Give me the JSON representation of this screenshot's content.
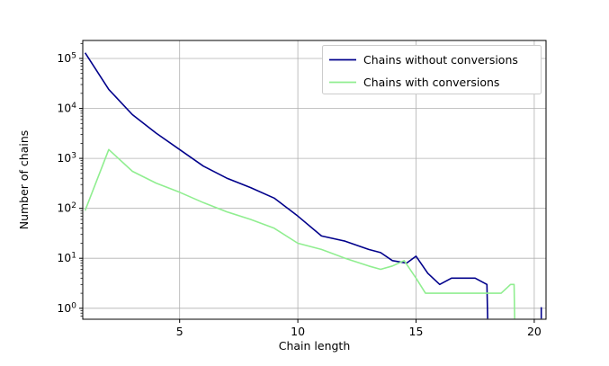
{
  "chart_data": {
    "type": "line",
    "title": "",
    "xlabel": "Chain length",
    "ylabel": "Number of chains",
    "x_ticks": [
      5,
      10,
      15,
      20
    ],
    "y_ticks_exp": [
      0,
      1,
      2,
      3,
      4,
      5
    ],
    "xlim": [
      0.9,
      20.5
    ],
    "ylim_log": [
      -0.22,
      5.36
    ],
    "yscale": "log",
    "grid": true,
    "grid_color": "#b0b0b0",
    "legend_position": "upper right",
    "series": [
      {
        "name": "Chains without conversions",
        "color": "#00008b",
        "points": [
          [
            1,
            130000
          ],
          [
            2,
            24000
          ],
          [
            3,
            7500
          ],
          [
            4,
            3200
          ],
          [
            5,
            1500
          ],
          [
            6,
            700
          ],
          [
            7,
            400
          ],
          [
            8,
            260
          ],
          [
            9,
            160
          ],
          [
            10,
            70
          ],
          [
            11,
            28
          ],
          [
            12,
            22
          ],
          [
            13,
            15
          ],
          [
            13.5,
            13
          ],
          [
            14,
            9
          ],
          [
            14.6,
            8
          ],
          [
            15,
            11
          ],
          [
            15.5,
            5
          ],
          [
            16,
            3
          ],
          [
            16.5,
            4
          ],
          [
            17.5,
            4
          ],
          [
            18,
            3
          ],
          [
            18.03,
            0.62
          ]
        ],
        "extra_segments": [
          [
            [
              20.3,
              0.62
            ],
            [
              20.3,
              1.05
            ]
          ]
        ]
      },
      {
        "name": "Chains with conversions",
        "color": "#90ee90",
        "points": [
          [
            1,
            90
          ],
          [
            2,
            1500
          ],
          [
            3,
            550
          ],
          [
            4,
            320
          ],
          [
            5,
            210
          ],
          [
            6,
            130
          ],
          [
            7,
            85
          ],
          [
            8,
            60
          ],
          [
            9,
            40
          ],
          [
            10,
            20
          ],
          [
            11,
            15
          ],
          [
            12,
            10
          ],
          [
            13,
            7
          ],
          [
            13.5,
            6
          ],
          [
            14,
            7
          ],
          [
            14.5,
            9
          ],
          [
            15,
            4
          ],
          [
            15.4,
            2
          ],
          [
            18.6,
            2
          ],
          [
            19,
            3
          ],
          [
            19.15,
            3
          ],
          [
            19.17,
            0.62
          ]
        ],
        "extra_segments": []
      }
    ]
  }
}
